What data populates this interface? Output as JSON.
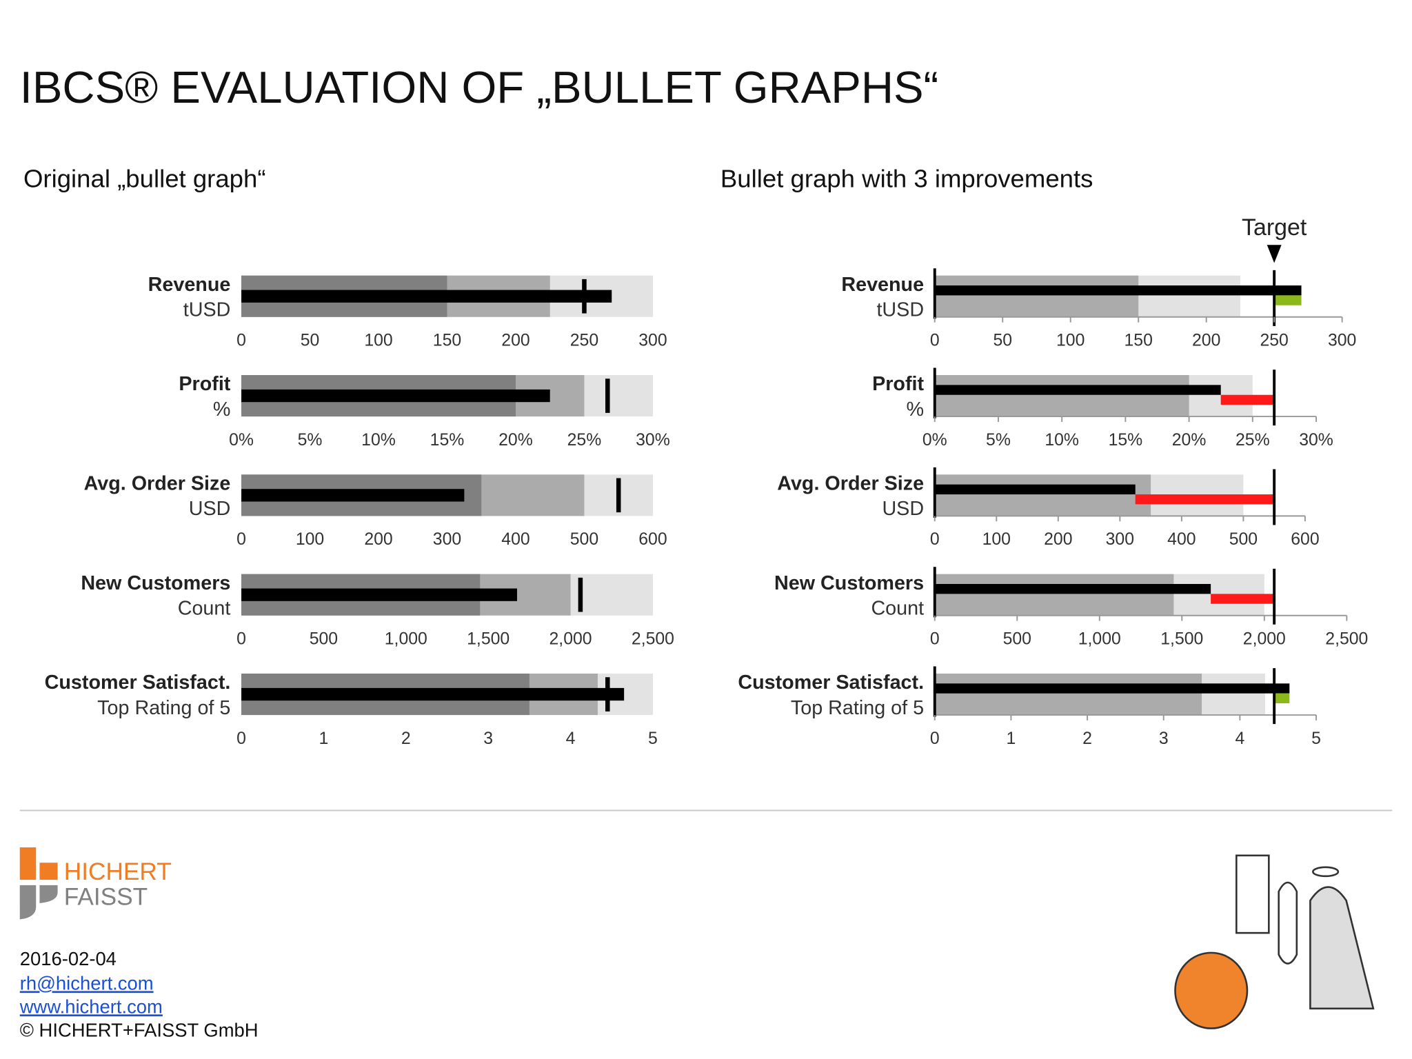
{
  "title": "IBCS® EVALUATION OF „BULLET GRAPHS“",
  "footer": {
    "logo_top": "HICHERT",
    "logo_bottom": "FAISST",
    "date": "2016-02-04",
    "email": "rh@hichert.com",
    "website": "www.hichert.com",
    "copyright": "© HICHERT+FAISST GmbH"
  },
  "chart_data": [
    {
      "type": "bullet",
      "subtitle": "Original „bullet graph“",
      "range_colors": [
        "#e3e3e3",
        "#ababab",
        "#808080"
      ],
      "value_color": "#000000",
      "target_color": "#000000",
      "rows": [
        {
          "label": "Revenue",
          "unit": "tUSD",
          "ranges": [
            300,
            225,
            150
          ],
          "value": 270,
          "target": 250,
          "xlim": [
            0,
            300
          ],
          "xticks": [
            0,
            50,
            100,
            150,
            200,
            250,
            300
          ]
        },
        {
          "label": "Profit",
          "unit": "%",
          "ranges": [
            30,
            25,
            20
          ],
          "value": 22.5,
          "target": 26.7,
          "xlim": [
            0,
            30
          ],
          "xticks": [
            {
              "value": 0,
              "label": "0%"
            },
            {
              "value": 5,
              "label": "5%"
            },
            {
              "value": 10,
              "label": "10%"
            },
            {
              "value": 15,
              "label": "15%"
            },
            {
              "value": 20,
              "label": "20%"
            },
            {
              "value": 25,
              "label": "25%"
            },
            {
              "value": 30,
              "label": "30%"
            }
          ]
        },
        {
          "label": "Avg. Order Size",
          "unit": "USD",
          "ranges": [
            600,
            500,
            350
          ],
          "value": 325,
          "target": 550,
          "xlim": [
            0,
            600
          ],
          "xticks": [
            0,
            100,
            200,
            300,
            400,
            500,
            600
          ]
        },
        {
          "label": "New Customers",
          "unit": "Count",
          "ranges": [
            2500,
            2000,
            1450
          ],
          "value": 1675,
          "target": 2060,
          "xlim": [
            0,
            2500
          ],
          "xticks": [
            0,
            500,
            {
              "value": 1000,
              "label": "1,000"
            },
            {
              "value": 1500,
              "label": "1,500"
            },
            {
              "value": 2000,
              "label": "2,000"
            },
            {
              "value": 2500,
              "label": "2,500"
            }
          ]
        },
        {
          "label": "Customer Satisfact.",
          "unit": "Top Rating of 5",
          "ranges": [
            5,
            4.33,
            3.5
          ],
          "value": 4.65,
          "target": 4.45,
          "xlim": [
            0,
            5
          ],
          "xticks": [
            0,
            1,
            2,
            3,
            4,
            5
          ]
        }
      ]
    },
    {
      "type": "bullet",
      "subtitle": "Bullet graph with 3 improvements",
      "annotation": "Target",
      "range_colors": [
        "#e2e2e2",
        "#ababab"
      ],
      "value_color": "#000000",
      "target_color": "#000000",
      "good_color": "#8cb81c",
      "bad_color": "#ff1a1a",
      "rows": [
        {
          "label": "Revenue",
          "unit": "tUSD",
          "ranges": [
            225,
            150
          ],
          "value": 270,
          "target": 250,
          "xlim": [
            0,
            300
          ],
          "xticks": [
            0,
            50,
            100,
            150,
            200,
            250,
            300
          ]
        },
        {
          "label": "Profit",
          "unit": "%",
          "ranges": [
            25,
            20
          ],
          "value": 22.5,
          "target": 26.7,
          "xlim": [
            0,
            30
          ],
          "xticks": [
            {
              "value": 0,
              "label": "0%"
            },
            {
              "value": 5,
              "label": "5%"
            },
            {
              "value": 10,
              "label": "10%"
            },
            {
              "value": 15,
              "label": "15%"
            },
            {
              "value": 20,
              "label": "20%"
            },
            {
              "value": 25,
              "label": "25%"
            },
            {
              "value": 30,
              "label": "30%"
            }
          ]
        },
        {
          "label": "Avg. Order Size",
          "unit": "USD",
          "ranges": [
            500,
            350
          ],
          "value": 325,
          "target": 550,
          "xlim": [
            0,
            600
          ],
          "xticks": [
            0,
            100,
            200,
            300,
            400,
            500,
            600
          ]
        },
        {
          "label": "New Customers",
          "unit": "Count",
          "ranges": [
            2000,
            1450
          ],
          "value": 1675,
          "target": 2060,
          "xlim": [
            0,
            2500
          ],
          "xticks": [
            0,
            500,
            {
              "value": 1000,
              "label": "1,000"
            },
            {
              "value": 1500,
              "label": "1,500"
            },
            {
              "value": 2000,
              "label": "2,000"
            },
            {
              "value": 2500,
              "label": "2,500"
            }
          ]
        },
        {
          "label": "Customer Satisfact.",
          "unit": "Top Rating of 5",
          "ranges": [
            4.33,
            3.5
          ],
          "value": 4.65,
          "target": 4.45,
          "xlim": [
            0,
            5
          ],
          "xticks": [
            0,
            1,
            2,
            3,
            4,
            5
          ]
        }
      ]
    }
  ]
}
